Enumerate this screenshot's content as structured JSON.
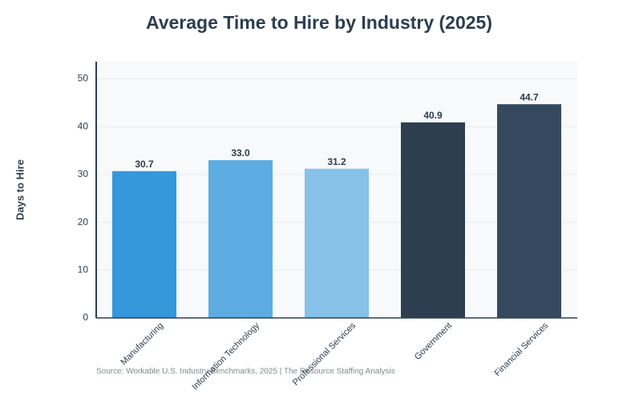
{
  "chart_data": {
    "type": "bar",
    "title": "Average Time to Hire by Industry (2025)",
    "y_label": "Days to Hire",
    "source": "Source: Workable U.S. Industry Benchmarks, 2025 | The Resource Staffing Analysis",
    "categories": [
      "Manufacturing",
      "Information Technology",
      "Professional Services",
      "Government",
      "Financial Services"
    ],
    "values": [
      30.7,
      33.0,
      31.2,
      40.9,
      44.7
    ],
    "value_labels": [
      "30.7",
      "33.0",
      "31.2",
      "40.9",
      "44.7"
    ],
    "colors": [
      "#3498db",
      "#5dade2",
      "#85c1e9",
      "#2c3e50",
      "#34495e"
    ],
    "ylim": [
      0,
      53.6
    ],
    "yticks": [
      0,
      10,
      20,
      30,
      40,
      50
    ],
    "grid": true
  }
}
